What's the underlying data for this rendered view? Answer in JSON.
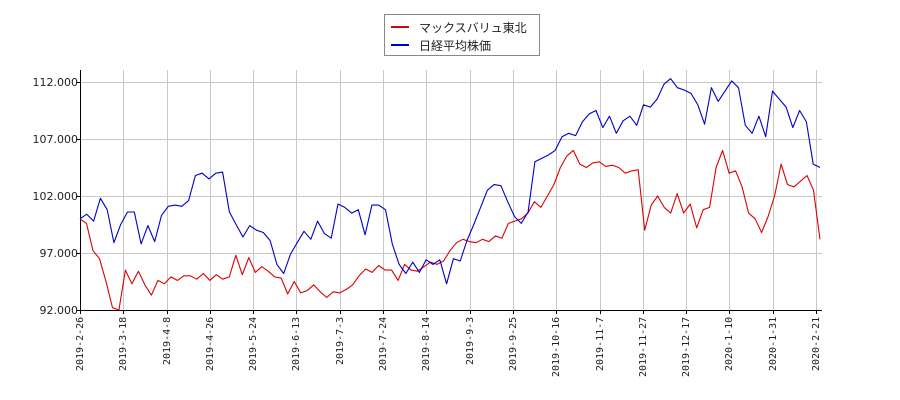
{
  "chart_data": {
    "type": "line",
    "title": "",
    "xlabel": "",
    "ylabel": "",
    "ylim": [
      92.0,
      113.0
    ],
    "grid": true,
    "legend_position": "top-center",
    "yticks": [
      "92.000",
      "97.000",
      "102.000",
      "107.000",
      "112.000"
    ],
    "xticks": [
      "2019-2-26",
      "2019-3-18",
      "2019-4-8",
      "2019-4-26",
      "2019-5-24",
      "2019-6-13",
      "2019-7-3",
      "2019-7-24",
      "2019-8-14",
      "2019-9-3",
      "2019-9-25",
      "2019-10-16",
      "2019-11-7",
      "2019-11-27",
      "2019-12-17",
      "2020-1-10",
      "2020-1-31",
      "2020-2-21"
    ],
    "series": [
      {
        "name": "マックスバリュ東北",
        "color": "#dd0000",
        "values": [
          100.0,
          99.6,
          97.2,
          96.5,
          94.5,
          92.2,
          92.0,
          95.5,
          94.3,
          95.4,
          94.2,
          93.3,
          94.6,
          94.3,
          94.9,
          94.6,
          95.0,
          95.0,
          94.7,
          95.2,
          94.6,
          95.1,
          94.7,
          94.9,
          96.8,
          95.1,
          96.6,
          95.3,
          95.8,
          95.4,
          94.9,
          94.8,
          93.4,
          94.5,
          93.5,
          93.7,
          94.2,
          93.6,
          93.1,
          93.6,
          93.5,
          93.8,
          94.2,
          95.0,
          95.6,
          95.3,
          95.9,
          95.5,
          95.5,
          94.6,
          96.0,
          95.5,
          95.4,
          95.8,
          96.2,
          96.0,
          96.3,
          97.2,
          97.9,
          98.2,
          98.0,
          97.9,
          98.2,
          98.0,
          98.5,
          98.3,
          99.6,
          99.8,
          100.0,
          100.5,
          101.5,
          101.0,
          102.0,
          103.0,
          104.5,
          105.5,
          106.0,
          104.8,
          104.5,
          104.9,
          105.0,
          104.6,
          104.7,
          104.5,
          104.0,
          104.2,
          104.3,
          99.0,
          101.2,
          102.0,
          101.0,
          100.5,
          102.2,
          100.5,
          101.3,
          99.2,
          100.8,
          101.0,
          104.5,
          106.0,
          104.0,
          104.2,
          102.8,
          100.5,
          100.0,
          98.8,
          100.2,
          102.0,
          104.8,
          103.0,
          102.8,
          103.3,
          103.8,
          102.5,
          98.2
        ]
      },
      {
        "name": "日経平均株価",
        "color": "#0000cc",
        "values": [
          100.0,
          100.4,
          99.8,
          101.8,
          100.8,
          97.9,
          99.5,
          100.6,
          100.6,
          97.8,
          99.4,
          98.0,
          100.3,
          101.1,
          101.2,
          101.1,
          101.6,
          103.8,
          104.0,
          103.5,
          104.0,
          104.1,
          100.6,
          99.5,
          98.4,
          99.4,
          99.0,
          98.8,
          98.1,
          96.0,
          95.2,
          96.9,
          97.9,
          98.9,
          98.2,
          99.8,
          98.7,
          98.3,
          101.3,
          101.0,
          100.5,
          100.8,
          98.6,
          101.2,
          101.2,
          100.8,
          97.8,
          96.0,
          95.2,
          96.2,
          95.3,
          96.4,
          96.0,
          96.4,
          94.3,
          96.5,
          96.3,
          98.1,
          99.5,
          101.0,
          102.5,
          103.0,
          102.9,
          101.5,
          100.2,
          99.6,
          100.6,
          105.0,
          105.3,
          105.6,
          106.0,
          107.2,
          107.5,
          107.3,
          108.5,
          109.2,
          109.5,
          108.0,
          109.0,
          107.5,
          108.6,
          109.0,
          108.2,
          110.0,
          109.8,
          110.5,
          111.8,
          112.3,
          111.5,
          111.3,
          111.0,
          110.0,
          108.3,
          111.5,
          110.3,
          111.2,
          112.1,
          111.5,
          108.2,
          107.5,
          109.0,
          107.2,
          111.2,
          110.5,
          109.8,
          108.0,
          109.5,
          108.5,
          104.8,
          104.5
        ]
      }
    ]
  },
  "legend": {
    "items": [
      {
        "label": "マックスバリュ東北",
        "color": "#dd0000"
      },
      {
        "label": "日経平均株価",
        "color": "#0000cc"
      }
    ]
  }
}
